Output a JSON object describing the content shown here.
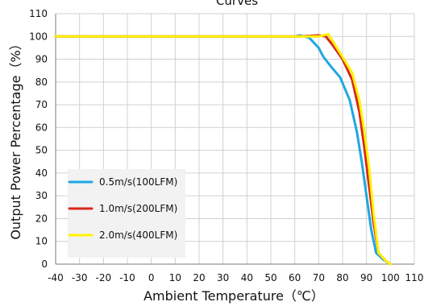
{
  "chart_data": {
    "type": "line",
    "title": "Curves",
    "xlabel": "Ambient Temperature（℃）",
    "ylabel": "Output Power Percentage（%）",
    "xlim": [
      -40,
      110
    ],
    "ylim": [
      0,
      110
    ],
    "x_ticks": [
      -40,
      -30,
      -20,
      -10,
      0,
      10,
      20,
      30,
      40,
      50,
      60,
      70,
      80,
      90,
      100,
      110
    ],
    "y_ticks": [
      0,
      10,
      20,
      30,
      40,
      50,
      60,
      70,
      80,
      90,
      100,
      110
    ],
    "grid": true,
    "legend_position": "bottom-left",
    "colors": {
      "series_1": "#1FA7E0",
      "series_2": "#D8261C",
      "series_3": "#FFF200"
    },
    "series": [
      {
        "name": "0.5m/s(100LFM)",
        "color": "#1FA7E0",
        "points": [
          {
            "x": -40,
            "y": 100
          },
          {
            "x": 60,
            "y": 100
          },
          {
            "x": 62,
            "y": 100.5
          },
          {
            "x": 66,
            "y": 99.5
          },
          {
            "x": 70,
            "y": 95
          },
          {
            "x": 72,
            "y": 91
          },
          {
            "x": 75,
            "y": 87
          },
          {
            "x": 79,
            "y": 82
          },
          {
            "x": 83,
            "y": 72
          },
          {
            "x": 86,
            "y": 58
          },
          {
            "x": 88,
            "y": 45
          },
          {
            "x": 90,
            "y": 30
          },
          {
            "x": 92,
            "y": 15
          },
          {
            "x": 94,
            "y": 5
          },
          {
            "x": 97,
            "y": 2
          },
          {
            "x": 100,
            "y": 0
          }
        ]
      },
      {
        "name": "1.0m/s(200LFM)",
        "color": "#D8261C",
        "points": [
          {
            "x": -40,
            "y": 100
          },
          {
            "x": 62,
            "y": 100
          },
          {
            "x": 70,
            "y": 100.5
          },
          {
            "x": 73,
            "y": 100
          },
          {
            "x": 76,
            "y": 96
          },
          {
            "x": 80,
            "y": 90
          },
          {
            "x": 84,
            "y": 81
          },
          {
            "x": 87,
            "y": 67
          },
          {
            "x": 89,
            "y": 52
          },
          {
            "x": 91,
            "y": 35
          },
          {
            "x": 93,
            "y": 18
          },
          {
            "x": 95,
            "y": 5
          },
          {
            "x": 98,
            "y": 1.5
          },
          {
            "x": 100,
            "y": 0
          }
        ]
      },
      {
        "name": "2.0m/s(400LFM)",
        "color": "#FFF200",
        "points": [
          {
            "x": -40,
            "y": 100
          },
          {
            "x": 70,
            "y": 100
          },
          {
            "x": 74,
            "y": 101
          },
          {
            "x": 77,
            "y": 96
          },
          {
            "x": 80,
            "y": 91
          },
          {
            "x": 84,
            "y": 84
          },
          {
            "x": 87,
            "y": 72
          },
          {
            "x": 89,
            "y": 59
          },
          {
            "x": 91,
            "y": 43
          },
          {
            "x": 93,
            "y": 22
          },
          {
            "x": 95,
            "y": 5
          },
          {
            "x": 98,
            "y": 1.5
          },
          {
            "x": 100,
            "y": 0
          }
        ]
      }
    ]
  }
}
